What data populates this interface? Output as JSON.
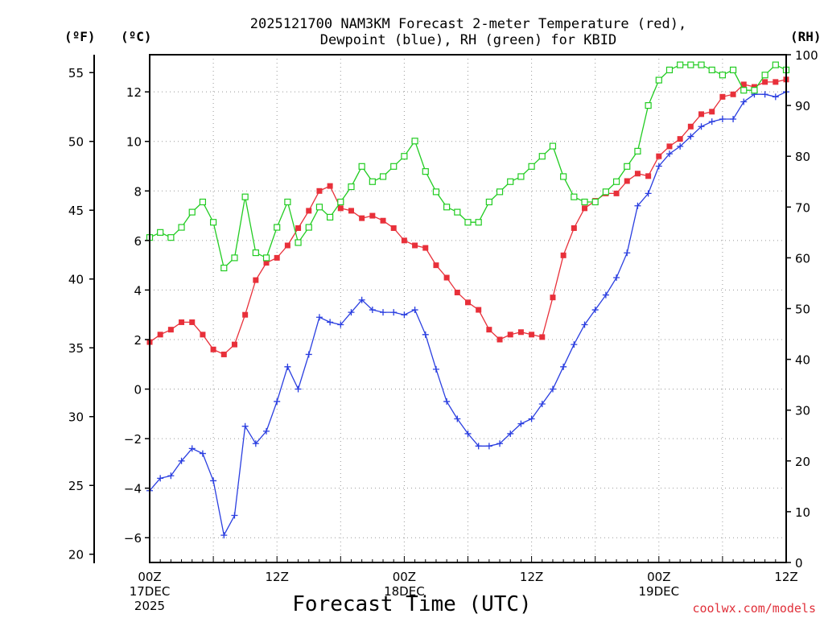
{
  "chart_data": {
    "type": "line",
    "title_line1": "2025121700 NAM3KM Forecast 2-meter Temperature (red),",
    "title_line2": "Dewpoint (blue), RH (green) for KBID",
    "xlabel": "Forecast Time (UTC)",
    "credit": "coolwx.com/models",
    "units": {
      "f": "(ºF)",
      "c": "(ºC)",
      "rh": "(RH)"
    },
    "x_range_hours": [
      0,
      60
    ],
    "x_ticks": [
      {
        "hour": 0,
        "lines": [
          "00Z",
          "17DEC",
          "2025"
        ]
      },
      {
        "hour": 12,
        "lines": [
          "12Z"
        ]
      },
      {
        "hour": 24,
        "lines": [
          "00Z",
          "18DEC"
        ]
      },
      {
        "hour": 36,
        "lines": [
          "12Z"
        ]
      },
      {
        "hour": 48,
        "lines": [
          "00Z",
          "19DEC"
        ]
      },
      {
        "hour": 60,
        "lines": [
          "12Z"
        ]
      }
    ],
    "y_left_celsius": {
      "range": [
        -7,
        13.5
      ],
      "ticks": [
        "-6",
        "-4",
        "-2",
        "0",
        "2",
        "4",
        "6",
        "8",
        "10",
        "12"
      ]
    },
    "y_left_fahrenheit": {
      "range": [
        19.4,
        56.3
      ],
      "ticks": [
        "20",
        "25",
        "30",
        "35",
        "40",
        "45",
        "50",
        "55"
      ]
    },
    "y_right_rh": {
      "range": [
        0,
        100
      ],
      "ticks": [
        "0",
        "10",
        "20",
        "30",
        "40",
        "50",
        "60",
        "70",
        "80",
        "90",
        "100"
      ]
    },
    "series": [
      {
        "name": "2-meter Temperature",
        "unit": "C",
        "color": "#e8303a",
        "marker": "filled-square",
        "values": [
          1.9,
          2.2,
          2.4,
          2.7,
          2.7,
          2.2,
          1.6,
          1.4,
          1.8,
          3.0,
          4.4,
          5.1,
          5.3,
          5.8,
          6.5,
          7.2,
          8.0,
          8.2,
          7.3,
          7.2,
          6.9,
          7.0,
          6.8,
          6.5,
          6.0,
          5.8,
          5.7,
          5.0,
          4.5,
          3.9,
          3.5,
          3.2,
          2.4,
          2.0,
          2.2,
          2.3,
          2.2,
          2.1,
          3.7,
          5.4,
          6.5,
          7.3,
          7.6,
          7.9,
          7.9,
          8.4,
          8.7,
          8.6,
          9.4,
          9.8,
          10.1,
          10.6,
          11.1,
          11.2,
          11.8,
          11.9,
          12.3,
          12.2,
          12.4,
          12.4,
          12.5
        ]
      },
      {
        "name": "Dewpoint",
        "unit": "C",
        "color": "#2a3ee0",
        "marker": "plus",
        "values": [
          -4.1,
          -3.6,
          -3.5,
          -2.9,
          -2.4,
          -2.6,
          -3.7,
          -5.9,
          -5.1,
          -1.5,
          -2.2,
          -1.7,
          -0.5,
          0.9,
          0.0,
          1.4,
          2.9,
          2.7,
          2.6,
          3.1,
          3.6,
          3.2,
          3.1,
          3.1,
          3.0,
          3.2,
          2.2,
          0.8,
          -0.5,
          -1.2,
          -1.8,
          -2.3,
          -2.3,
          -2.2,
          -1.8,
          -1.4,
          -1.2,
          -0.6,
          0.0,
          0.9,
          1.8,
          2.6,
          3.2,
          3.8,
          4.5,
          5.5,
          7.4,
          7.9,
          9.0,
          9.5,
          9.8,
          10.2,
          10.6,
          10.8,
          10.9,
          10.9,
          11.6,
          11.9,
          11.9,
          11.8,
          12.0
        ]
      },
      {
        "name": "RH",
        "unit": "%",
        "color": "#22cc22",
        "marker": "open-square",
        "values": [
          64,
          65,
          64,
          66,
          69,
          71,
          67,
          58,
          60,
          72,
          61,
          60,
          66,
          71,
          63,
          66,
          70,
          68,
          71,
          74,
          78,
          75,
          76,
          78,
          80,
          83,
          77,
          73,
          70,
          69,
          67,
          67,
          71,
          73,
          75,
          76,
          78,
          80,
          82,
          76,
          72,
          71,
          71,
          73,
          75,
          78,
          81,
          90,
          95,
          97,
          98,
          98,
          98,
          97,
          96,
          97,
          93,
          93,
          96,
          98,
          97
        ]
      }
    ]
  }
}
